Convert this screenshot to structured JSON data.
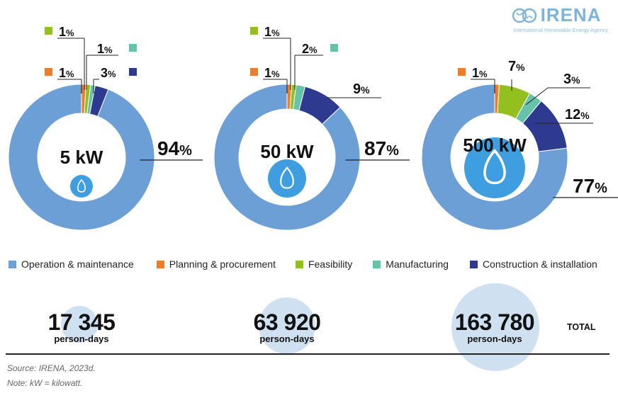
{
  "logo": {
    "name": "IRENA",
    "subtitle": "International Renewable Energy Agency"
  },
  "colors": {
    "Operation & maintenance": "#6b9fd6",
    "Planning & procurement": "#ec7c30",
    "Feasibility": "#93c01f",
    "Manufacturing": "#67c2ac",
    "Construction & installation": "#2e3a8f",
    "center_icon": "#3f9ee0"
  },
  "legend": [
    {
      "label": "Operation & maintenance",
      "color": "#6b9fd6"
    },
    {
      "label": "Planning & procurement",
      "color": "#ec7c30"
    },
    {
      "label": "Feasibility",
      "color": "#93c01f"
    },
    {
      "label": "Manufacturing",
      "color": "#67c2ac"
    },
    {
      "label": "Construction & installation",
      "color": "#2e3a8f"
    }
  ],
  "chart_data": [
    {
      "type": "pie",
      "center_label": "5 kW",
      "slices": [
        {
          "label": "Planning & procurement",
          "value": 1,
          "text": "1%"
        },
        {
          "label": "Feasibility",
          "value": 1,
          "text": "1%"
        },
        {
          "label": "Manufacturing",
          "value": 1,
          "text": "1%"
        },
        {
          "label": "Construction & installation",
          "value": 3,
          "text": "3%"
        },
        {
          "label": "Operation & maintenance",
          "value": 94,
          "text": "94%"
        }
      ],
      "total": "17 345",
      "total_unit": "person-days",
      "icon": "water-drop-icon"
    },
    {
      "type": "pie",
      "center_label": "50 kW",
      "slices": [
        {
          "label": "Planning & procurement",
          "value": 1,
          "text": "1%"
        },
        {
          "label": "Feasibility",
          "value": 1,
          "text": "1%"
        },
        {
          "label": "Manufacturing",
          "value": 2,
          "text": "2%"
        },
        {
          "label": "Construction & installation",
          "value": 9,
          "text": "9%"
        },
        {
          "label": "Operation & maintenance",
          "value": 87,
          "text": "87%"
        }
      ],
      "total": "63 920",
      "total_unit": "person-days",
      "icon": "water-drop-icon"
    },
    {
      "type": "pie",
      "center_label": "500 kW",
      "slices": [
        {
          "label": "Planning & procurement",
          "value": 1,
          "text": "1%"
        },
        {
          "label": "Feasibility",
          "value": 7,
          "text": "7%"
        },
        {
          "label": "Manufacturing",
          "value": 3,
          "text": "3%"
        },
        {
          "label": "Construction & installation",
          "value": 12,
          "text": "12%"
        },
        {
          "label": "Operation & maintenance",
          "value": 77,
          "text": "77%"
        }
      ],
      "total": "163 780",
      "total_unit": "person-days",
      "icon": "water-drop-icon"
    }
  ],
  "total_label": "TOTAL",
  "source": "Source: IRENA, 2023d.",
  "note": "Note: kW = kilowatt."
}
